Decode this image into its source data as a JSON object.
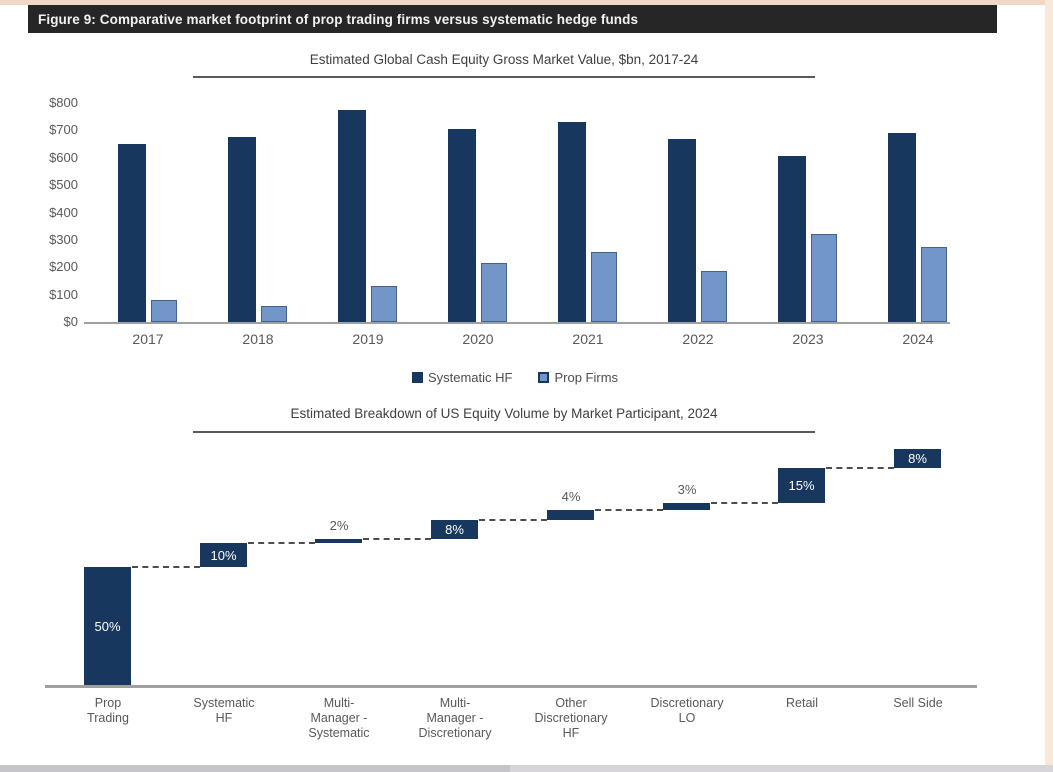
{
  "figure_header": {
    "label": "Figure 9: Comparative market footprint of prop trading firms versus systematic hedge funds"
  },
  "colors": {
    "dark_navy": "#17375e",
    "light_blue": "#7396c8",
    "light_blue_border": "#44618c",
    "header_bg": "#262626",
    "peach_border": "#f2d8c4"
  },
  "chart_data": [
    {
      "type": "bar",
      "title": "Estimated Global Cash Equity Gross Market Value, $bn, 2017-24",
      "categories": [
        "2017",
        "2018",
        "2019",
        "2020",
        "2021",
        "2022",
        "2023",
        "2024"
      ],
      "series": [
        {
          "name": "Systematic HF",
          "color": "#17375e",
          "values": [
            650,
            675,
            775,
            705,
            730,
            670,
            605,
            690
          ]
        },
        {
          "name": "Prop Firms",
          "color": "#7396c8",
          "values": [
            80,
            60,
            130,
            215,
            255,
            185,
            320,
            275
          ]
        }
      ],
      "ylim": [
        0,
        800
      ],
      "ytick_step": 100,
      "ytick_labels": [
        "$0",
        "$100",
        "$200",
        "$300",
        "$400",
        "$500",
        "$600",
        "$700",
        "$800"
      ],
      "grid": false,
      "legend_position": "bottom"
    },
    {
      "type": "waterfall",
      "title": "Estimated Breakdown of US Equity Volume by Market Participant, 2024",
      "categories": [
        "Prop Trading",
        "Systematic HF",
        "Multi-Manager - Systematic",
        "Multi-Manager - Discretionary",
        "Other Discretionary HF",
        "Discretionary LO",
        "Retail",
        "Sell Side"
      ],
      "steps": [
        {
          "label_lines": [
            "Prop",
            "Trading"
          ],
          "value": 50,
          "display": "50%",
          "label_pos": "inside",
          "cumulative_end": 50
        },
        {
          "label_lines": [
            "Systematic",
            "HF"
          ],
          "value": 10,
          "display": "10%",
          "label_pos": "inside",
          "cumulative_end": 60
        },
        {
          "label_lines": [
            "Multi-",
            "Manager -",
            "Systematic"
          ],
          "value": 2,
          "display": "2%",
          "label_pos": "above",
          "cumulative_end": 62
        },
        {
          "label_lines": [
            "Multi-",
            "Manager -",
            "Discretionary"
          ],
          "value": 8,
          "display": "8%",
          "label_pos": "inside",
          "cumulative_end": 70
        },
        {
          "label_lines": [
            "Other",
            "Discretionary",
            "HF"
          ],
          "value": 4,
          "display": "4%",
          "label_pos": "above",
          "cumulative_end": 74
        },
        {
          "label_lines": [
            "Discretionary",
            "LO"
          ],
          "value": 3,
          "display": "3%",
          "label_pos": "above",
          "cumulative_end": 77
        },
        {
          "label_lines": [
            "Retail"
          ],
          "value": 15,
          "display": "15%",
          "label_pos": "inside",
          "cumulative_end": 92
        },
        {
          "label_lines": [
            "Sell Side"
          ],
          "value": 8,
          "display": "8%",
          "label_pos": "inside",
          "cumulative_end": 100
        }
      ],
      "bar_color": "#17375e",
      "ylim": [
        0,
        110
      ],
      "grid": false
    }
  ]
}
